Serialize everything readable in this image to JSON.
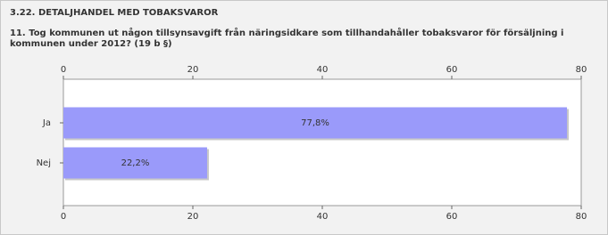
{
  "chart_data": {
    "type": "hbar",
    "title": "3.22. DETALJHANDEL MED TOBAKSVAROR",
    "subtitle": "11. Tog kommunen ut någon tillsynsavgift från näringsidkare som tillhandahåller tobaksvaror för försäljning i kommunen under 2012? (19 b §)",
    "categories": [
      "Ja",
      "Nej"
    ],
    "values": [
      77.8,
      22.2
    ],
    "value_labels": [
      "77,8%",
      "22,2%"
    ],
    "color": "#9a9afa",
    "xlim": [
      0,
      80
    ],
    "xticks": [
      0,
      20,
      40,
      60,
      80
    ]
  }
}
